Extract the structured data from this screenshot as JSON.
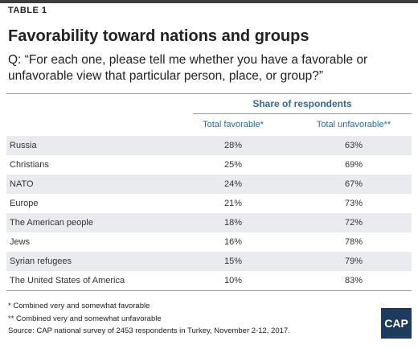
{
  "label": "TABLE 1",
  "title": "Favorability toward nations and groups",
  "question": "Q: “For each one, please tell me whether you have a favorable or unfavorable view that particular person, place, or group?”",
  "table": {
    "group_header": "Share of respondents",
    "columns": [
      "Total favorable*",
      "Total unfavorable**"
    ],
    "rows": [
      [
        "Russia",
        "28%",
        "63%"
      ],
      [
        "Christians",
        "25%",
        "69%"
      ],
      [
        "NATO",
        "24%",
        "67%"
      ],
      [
        "Europe",
        "21%",
        "73%"
      ],
      [
        "The American people",
        "18%",
        "72%"
      ],
      [
        "Jews",
        "16%",
        "78%"
      ],
      [
        "Syrian refugees",
        "15%",
        "79%"
      ],
      [
        "The United States of America",
        "10%",
        "83%"
      ]
    ]
  },
  "notes": [
    "* Combined very and somewhat favorable",
    "** Combined very and somewhat unfavorable",
    "Source: CAP national survey of 2453 respondents in Turkey, November 2-12, 2017."
  ],
  "logo": {
    "text": "CAP"
  }
}
